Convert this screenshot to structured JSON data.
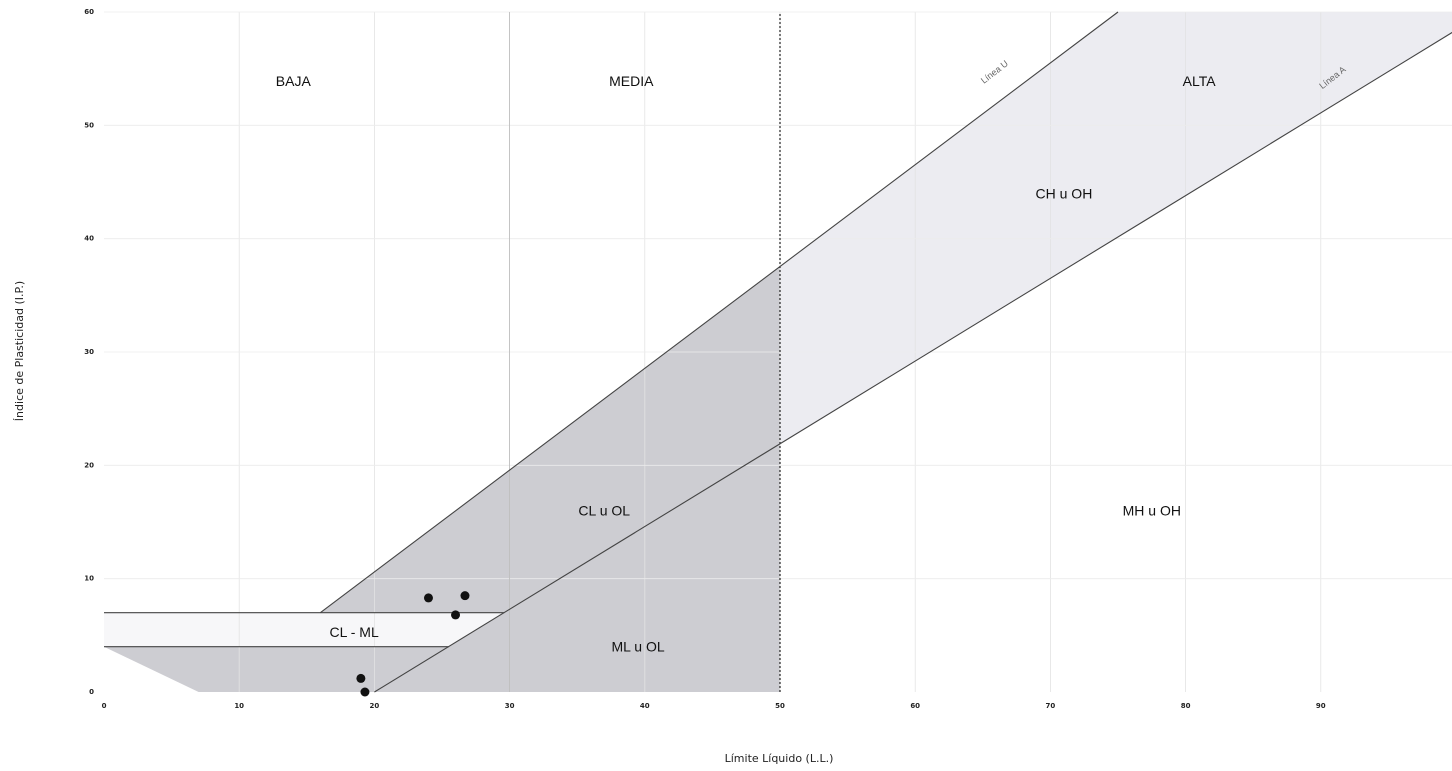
{
  "chart_data": {
    "type": "scatter",
    "title": "",
    "xlabel": "Límite Líquido (L.L.)",
    "ylabel": "Índice de Plasticidad (I.P.)",
    "xlim": [
      0,
      100
    ],
    "ylim": [
      0,
      60
    ],
    "xticks": [
      0,
      10,
      20,
      30,
      40,
      50,
      60,
      70,
      80,
      90
    ],
    "yticks": [
      0,
      10,
      20,
      30,
      40,
      50,
      60
    ],
    "grid": true,
    "zones": [
      {
        "label": "BAJA",
        "at": [
          14,
          54
        ]
      },
      {
        "label": "MEDIA",
        "at": [
          39,
          54
        ]
      },
      {
        "label": "ALTA",
        "at": [
          81,
          54
        ]
      }
    ],
    "region_labels": [
      {
        "label": "CH u OH",
        "at": [
          71,
          44
        ]
      },
      {
        "label": "CL u OL",
        "at": [
          37,
          16
        ]
      },
      {
        "label": "MH u OH",
        "at": [
          77.5,
          16
        ]
      },
      {
        "label": "ML u OL",
        "at": [
          39.5,
          4
        ]
      },
      {
        "label": "CL - ML",
        "at": [
          18.5,
          5.3
        ]
      }
    ],
    "line_labels": [
      {
        "label": "Línea U",
        "at": [
          66,
          54.5
        ]
      },
      {
        "label": "Línea A",
        "at": [
          91,
          54
        ]
      }
    ],
    "lines": [
      {
        "name": "Línea U",
        "points": [
          [
            16,
            7
          ],
          [
            75,
            60
          ]
        ]
      },
      {
        "name": "Línea A",
        "points": [
          [
            20,
            0
          ],
          [
            100,
            58.4
          ]
        ]
      },
      {
        "name": "IP 7",
        "points": [
          [
            0,
            7
          ],
          [
            29.6,
            7
          ]
        ]
      },
      {
        "name": "IP 4",
        "points": [
          [
            0,
            4
          ],
          [
            25.5,
            4
          ]
        ]
      }
    ],
    "boundary_x": 50,
    "divider_x": 30,
    "points": [
      {
        "x": 24.0,
        "y": 8.3
      },
      {
        "x": 26.7,
        "y": 8.5
      },
      {
        "x": 26.0,
        "y": 6.8
      },
      {
        "x": 19.0,
        "y": 1.2
      },
      {
        "x": 19.3,
        "y": 0.0
      }
    ],
    "colors": {
      "dark_fill": "#cdcdd2",
      "light_fill": "#ececf1",
      "line": "#6b6b6b",
      "point": "#111111"
    }
  }
}
